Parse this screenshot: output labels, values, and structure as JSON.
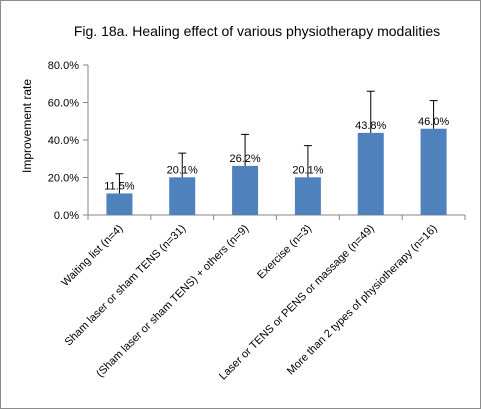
{
  "chart_data": {
    "type": "bar",
    "title": "Fig. 18a.  Healing effect of various physiotherapy modalities",
    "xlabel": "",
    "ylabel": "Improvement rate",
    "ylim": [
      0,
      80
    ],
    "yticks": [
      "0.0%",
      "20.0%",
      "40.0%",
      "60.0%",
      "80.0%"
    ],
    "grid": false,
    "legend": "none",
    "categories": [
      "Waiting list (n=4)",
      "Sham laser or sham TENS (n=31)",
      "(Sham laser or sham TENS) + others (n=9)",
      "Exercise (n=3)",
      "Laser or TENS or PENS or massage  (n=49)",
      "More than 2 types of physiotherapy (n=16)"
    ],
    "values": [
      11.5,
      20.1,
      26.2,
      20.1,
      43.8,
      46.0
    ],
    "data_labels": [
      "11.5%",
      "20.1%",
      "26.2%",
      "20.1%",
      "43.8%",
      "46.0%"
    ],
    "error_upper": [
      22,
      33,
      43,
      37,
      66,
      61
    ],
    "bar_color": "#4f81bd",
    "error_bar_color": "#000000"
  }
}
